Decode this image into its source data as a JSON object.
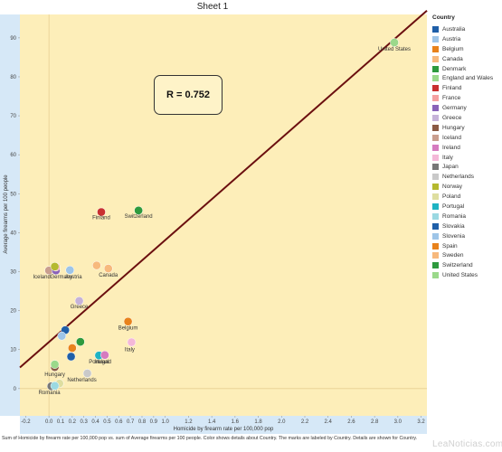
{
  "sheet_title": "Sheet 1",
  "annotation": "R = 0.752",
  "footnote": "Sum of Homicide by firearm rate per 100,000 pop vs. sum of Average firearms per 100 people. Color shows details about Country. The marks are labeled by Country. Details are shown for Country.",
  "watermark": "LeaNoticias.com",
  "legend": {
    "title": "Country",
    "items": [
      {
        "label": "Australia",
        "color": "#1f5fa8"
      },
      {
        "label": "Austria",
        "color": "#9ec5e8"
      },
      {
        "label": "Belgium",
        "color": "#e8821c"
      },
      {
        "label": "Canada",
        "color": "#f7b97d"
      },
      {
        "label": "Denmark",
        "color": "#2e9a3e"
      },
      {
        "label": "England and Wales",
        "color": "#9bd98b"
      },
      {
        "label": "Finland",
        "color": "#c93030"
      },
      {
        "label": "France",
        "color": "#f5a0a0"
      },
      {
        "label": "Germany",
        "color": "#8a62b8"
      },
      {
        "label": "Greece",
        "color": "#c6b3d9"
      },
      {
        "label": "Hungary",
        "color": "#8a5a44"
      },
      {
        "label": "Iceland",
        "color": "#c99e8e"
      },
      {
        "label": "Ireland",
        "color": "#d67bbf"
      },
      {
        "label": "Italy",
        "color": "#f4b8d8"
      },
      {
        "label": "Japan",
        "color": "#777777"
      },
      {
        "label": "Netherlands",
        "color": "#c9c9c9"
      },
      {
        "label": "Norway",
        "color": "#b5b92e"
      },
      {
        "label": "Poland",
        "color": "#dedea0"
      },
      {
        "label": "Portugal",
        "color": "#1fb3c3"
      },
      {
        "label": "Romania",
        "color": "#9bd9e2"
      },
      {
        "label": "Slovakia",
        "color": "#1f5fa8"
      },
      {
        "label": "Slovenia",
        "color": "#9ec5e8"
      },
      {
        "label": "Spain",
        "color": "#e8821c"
      },
      {
        "label": "Sweden",
        "color": "#f7b97d"
      },
      {
        "label": "Switzerland",
        "color": "#2e9a3e"
      },
      {
        "label": "United States",
        "color": "#9bd98b"
      }
    ]
  },
  "chart_data": {
    "type": "scatter",
    "xlabel": "Homicide by firearm rate per 100,000 pop",
    "ylabel": "Average firearms per 100 people",
    "xlim": [
      -0.25,
      3.25
    ],
    "ylim": [
      -7,
      96
    ],
    "xticks": [
      -0.2,
      0.0,
      0.1,
      0.2,
      0.3,
      0.4,
      0.5,
      0.6,
      0.7,
      0.8,
      0.9,
      1.0,
      1.2,
      1.4,
      1.6,
      1.8,
      2.0,
      2.2,
      2.4,
      2.6,
      2.8,
      3.0,
      3.2
    ],
    "xtick_labels": [
      "-0.2",
      "0.0",
      "0.1",
      "0.2",
      "0.3",
      "0.4",
      "0.5",
      "0.6",
      "0.7",
      "0.8",
      "0.9",
      "1.0",
      "1.2",
      "1.4",
      "1.6",
      "1.8",
      "2.0",
      "2.2",
      "2.4",
      "2.6",
      "2.8",
      "3.0",
      "3.2"
    ],
    "yticks": [
      0,
      10,
      20,
      30,
      40,
      50,
      60,
      70,
      80,
      90
    ],
    "trend_line": {
      "x": [
        -0.25,
        3.25
      ],
      "y": [
        5.4,
        97
      ],
      "color": "#6b0f0f"
    },
    "background_color": "#fdeeb9",
    "grid": false,
    "legend_position": "right",
    "points": [
      {
        "country": "United States",
        "x": 2.97,
        "y": 88.8,
        "label": "United States",
        "color": "#9bd98b"
      },
      {
        "country": "Switzerland",
        "x": 0.77,
        "y": 45.7,
        "label": "Switzerland",
        "color": "#2e9a3e"
      },
      {
        "country": "Finland",
        "x": 0.45,
        "y": 45.3,
        "label": "Finland",
        "color": "#c93030"
      },
      {
        "country": "Iceland",
        "x": 0.0,
        "y": 30.3,
        "label": "Iceland",
        "color": "#c99e8e"
      },
      {
        "country": "Germany",
        "x": 0.06,
        "y": 30.3,
        "label": "Germany",
        "color": "#8a62b8"
      },
      {
        "country": "France",
        "x": 0.06,
        "y": 31.2,
        "label": "",
        "color": "#f5a0a0"
      },
      {
        "country": "Austria",
        "x": 0.18,
        "y": 30.4,
        "label": "Austria",
        "color": "#9ec5e8"
      },
      {
        "country": "Norway",
        "x": 0.05,
        "y": 31.3,
        "label": "",
        "color": "#b5b92e"
      },
      {
        "country": "Sweden",
        "x": 0.41,
        "y": 31.6,
        "label": "",
        "color": "#f7b97d"
      },
      {
        "country": "Canada",
        "x": 0.51,
        "y": 30.8,
        "label": "Canada",
        "color": "#f7b97d"
      },
      {
        "country": "Greece",
        "x": 0.26,
        "y": 22.5,
        "label": "Greece",
        "color": "#c6b3d9"
      },
      {
        "country": "Belgium",
        "x": 0.68,
        "y": 17.2,
        "label": "Belgium",
        "color": "#e8821c"
      },
      {
        "country": "Slovakia",
        "x": 0.14,
        "y": 15.0,
        "label": "",
        "color": "#1f5fa8"
      },
      {
        "country": "Slovenia",
        "x": 0.11,
        "y": 13.5,
        "label": "",
        "color": "#9ec5e8"
      },
      {
        "country": "Italy",
        "x": 0.71,
        "y": 11.9,
        "label": "Italy",
        "color": "#f4b8d8"
      },
      {
        "country": "Denmark",
        "x": 0.27,
        "y": 12.0,
        "label": "",
        "color": "#2e9a3e"
      },
      {
        "country": "Spain",
        "x": 0.2,
        "y": 10.4,
        "label": "",
        "color": "#e8821c"
      },
      {
        "country": "Portugal",
        "x": 0.43,
        "y": 8.5,
        "label": "Portugal",
        "color": "#1fb3c3"
      },
      {
        "country": "Ireland",
        "x": 0.48,
        "y": 8.6,
        "label": "Ireland",
        "color": "#d67bbf"
      },
      {
        "country": "Australia",
        "x": 0.19,
        "y": 8.2,
        "label": "",
        "color": "#1f5fa8"
      },
      {
        "country": "Hungary",
        "x": 0.05,
        "y": 5.5,
        "label": "Hungary",
        "color": "#8a5a44"
      },
      {
        "country": "England and Wales",
        "x": 0.05,
        "y": 6.2,
        "label": "",
        "color": "#9bd98b"
      },
      {
        "country": "Netherlands",
        "x": 0.33,
        "y": 3.9,
        "label": "Netherlands",
        "color": "#c9c9c9"
      },
      {
        "country": "Poland",
        "x": 0.09,
        "y": 1.3,
        "label": "",
        "color": "#dedea0"
      },
      {
        "country": "Japan",
        "x": 0.02,
        "y": 0.6,
        "label": "",
        "color": "#777777"
      },
      {
        "country": "Romania",
        "x": 0.05,
        "y": 0.7,
        "label": "Romania",
        "color": "#9bd9e2"
      }
    ]
  }
}
